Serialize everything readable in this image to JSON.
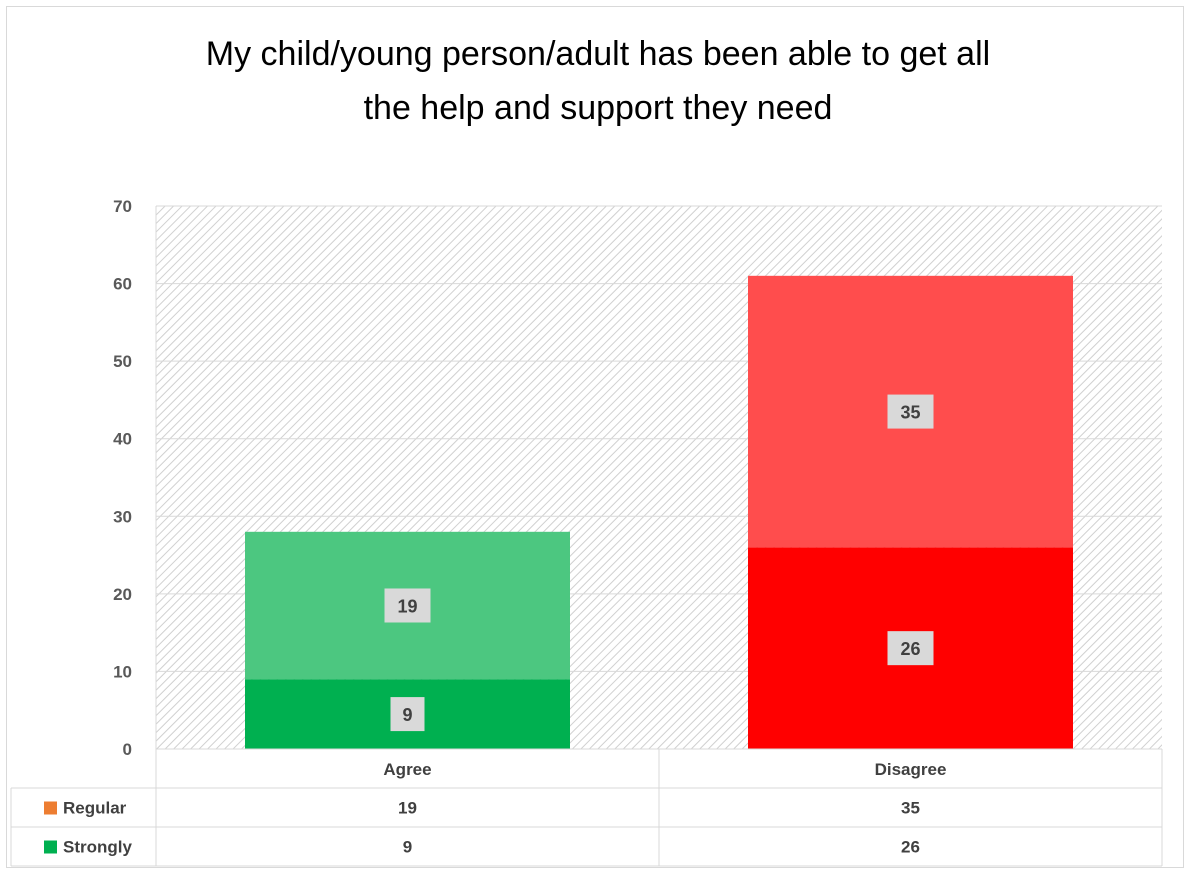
{
  "chart_data": {
    "type": "bar",
    "stacked": true,
    "title_lines": [
      "My child/young person/adult has been able to get all",
      "the help and support they need"
    ],
    "categories": [
      "Agree",
      "Disagree"
    ],
    "series": [
      {
        "name": "Strongly",
        "values": [
          9,
          26
        ],
        "colors": [
          "#00b050",
          "#ff0000"
        ]
      },
      {
        "name": "Regular",
        "values": [
          19,
          35
        ],
        "colors": [
          "#4cc780",
          "#ff4d4d"
        ]
      }
    ],
    "ylim": [
      0,
      70
    ],
    "yticks": [
      0,
      10,
      20,
      30,
      40,
      50,
      60,
      70
    ],
    "grid": true,
    "legend": "data-table-below",
    "data_table": {
      "rows": [
        {
          "label": "Regular",
          "key_color": "#ed7d31",
          "values": [
            "19",
            "35"
          ]
        },
        {
          "label": "Strongly",
          "key_color": "#00b050",
          "values": [
            "9",
            "26"
          ]
        }
      ]
    },
    "colors": {
      "plot_hatch": "#d0d0d0",
      "gridline": "#d9d9d9",
      "label_box": "#d9d9d9"
    }
  }
}
